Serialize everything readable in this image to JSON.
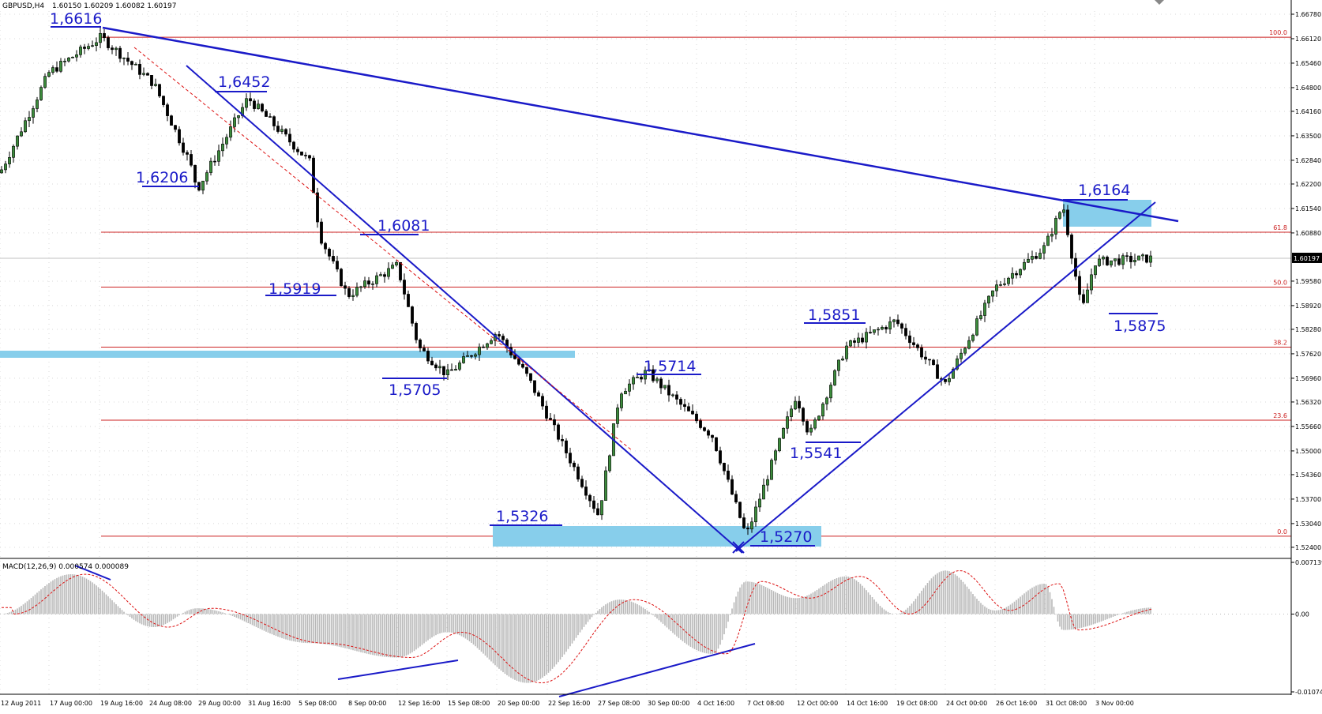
{
  "header": {
    "symbol": "GBPUSD,H4",
    "ohlc": "1.60150 1.60209 1.60082 1.60197"
  },
  "macd": {
    "label": "MACD(12,26,9) 0.000574 0.000089",
    "scale_labels": [
      "0.007139",
      "0.00",
      "-0.01074"
    ],
    "scale_values": [
      0.007139,
      0.0,
      -0.01074
    ]
  },
  "price_axis": {
    "min": 1.5242,
    "max": 1.6678,
    "labels": [
      "1.66780",
      "1.66120",
      "1.65460",
      "1.64800",
      "1.64160",
      "1.63500",
      "1.62840",
      "1.62200",
      "1.61540",
      "1.60880",
      "1.60197",
      "1.59580",
      "1.58920",
      "1.58280",
      "1.57620",
      "1.56960",
      "1.56320",
      "1.55660",
      "1.55000",
      "1.54360",
      "1.53700",
      "1.53040",
      "1.52400"
    ],
    "current_price": "1.60197"
  },
  "x_axis": {
    "labels": [
      "12 Aug 2011",
      "17 Aug 00:00",
      "19 Aug 16:00",
      "24 Aug 08:00",
      "29 Aug 00:00",
      "31 Aug 16:00",
      "5 Sep 08:00",
      "8 Sep 00:00",
      "12 Sep 16:00",
      "15 Sep 08:00",
      "20 Sep 00:00",
      "22 Sep 16:00",
      "27 Sep 08:00",
      "30 Sep 00:00",
      "4 Oct 16:00",
      "7 Oct 08:00",
      "12 Oct 00:00",
      "14 Oct 16:00",
      "19 Oct 08:00",
      "24 Oct 00:00",
      "26 Oct 16:00",
      "31 Oct 08:00",
      "3 Nov 00:00"
    ]
  },
  "fib_levels": [
    {
      "label": "100.0",
      "price": 1.6616
    },
    {
      "label": "61.8",
      "price": 1.609
    },
    {
      "label": "50.0",
      "price": 1.5942
    },
    {
      "label": "38.2",
      "price": 1.578
    },
    {
      "label": "23.6",
      "price": 1.5583
    },
    {
      "label": "0.0",
      "price": 1.527
    }
  ],
  "annotations": [
    {
      "text": "1,6616",
      "price": 1.6616
    },
    {
      "text": "1,6452",
      "price": 1.6452
    },
    {
      "text": "1,6206",
      "price": 1.6206
    },
    {
      "text": "1,6081",
      "price": 1.6081
    },
    {
      "text": "1,5919",
      "price": 1.5919
    },
    {
      "text": "1,5705",
      "price": 1.5705
    },
    {
      "text": "1,5714",
      "price": 1.5714
    },
    {
      "text": "1,5326",
      "price": 1.5326
    },
    {
      "text": "1,5270",
      "price": 1.527
    },
    {
      "text": "1,5851",
      "price": 1.5851
    },
    {
      "text": "1,5541",
      "price": 1.5541
    },
    {
      "text": "1,6164",
      "price": 1.6164
    },
    {
      "text": "1,5875",
      "price": 1.5875
    }
  ],
  "colors": {
    "annotation_blue": "#1a1ac8",
    "zone_blue": "#87ceeb",
    "fib_red": "#cc2222",
    "candle": "#000000",
    "signal_red": "#dd1111",
    "histogram_gray": "#b8b8b8"
  },
  "chart_data": [
    {
      "type": "candlestick",
      "title": "GBPUSD,H4",
      "ylim": [
        1.5242,
        1.6678
      ],
      "anchors": [
        {
          "date": "12 Aug 2011",
          "price": 1.625
        },
        {
          "date": "17 Aug 00:00",
          "price": 1.652
        },
        {
          "date": "17 Aug 08:00",
          "price": 1.6616
        },
        {
          "date": "19 Aug 16:00",
          "price": 1.649
        },
        {
          "date": "24 Aug 08:00",
          "price": 1.628
        },
        {
          "date": "24 Aug 16:00",
          "price": 1.6206
        },
        {
          "date": "29 Aug 00:00",
          "price": 1.6452
        },
        {
          "date": "31 Aug 16:00",
          "price": 1.628
        },
        {
          "date": "5 Sep 08:00",
          "price": 1.6081
        },
        {
          "date": "6 Sep 00:00",
          "price": 1.5919
        },
        {
          "date": "8 Sep 00:00",
          "price": 1.6
        },
        {
          "date": "12 Sep 16:00",
          "price": 1.578
        },
        {
          "date": "13 Sep 16:00",
          "price": 1.5705
        },
        {
          "date": "15 Sep 08:00",
          "price": 1.582
        },
        {
          "date": "20 Sep 00:00",
          "price": 1.57
        },
        {
          "date": "21 Sep 16:00",
          "price": 1.5326
        },
        {
          "date": "27 Sep 08:00",
          "price": 1.566
        },
        {
          "date": "28 Sep 08:00",
          "price": 1.5714
        },
        {
          "date": "30 Sep 00:00",
          "price": 1.554
        },
        {
          "date": "4 Oct 16:00",
          "price": 1.527
        },
        {
          "date": "7 Oct 08:00",
          "price": 1.565
        },
        {
          "date": "11 Oct 16:00",
          "price": 1.5541
        },
        {
          "date": "12 Oct 00:00",
          "price": 1.578
        },
        {
          "date": "14 Oct 16:00",
          "price": 1.5851
        },
        {
          "date": "19 Oct 08:00",
          "price": 1.568
        },
        {
          "date": "24 Oct 00:00",
          "price": 1.594
        },
        {
          "date": "26 Oct 16:00",
          "price": 1.605
        },
        {
          "date": "31 Oct 08:00",
          "price": 1.6164
        },
        {
          "date": "1 Nov 16:00",
          "price": 1.5875
        },
        {
          "date": "3 Nov 00:00",
          "price": 1.601
        },
        {
          "date": "4 Nov 16:00",
          "price": 1.60197
        }
      ]
    },
    {
      "type": "bar",
      "title": "MACD(12,26,9)",
      "ylim": [
        -0.01074,
        0.007139
      ],
      "histogram_anchors": [
        {
          "date": "12 Aug 2011",
          "value": 0.0
        },
        {
          "date": "17 Aug 08:00",
          "value": 0.0055
        },
        {
          "date": "24 Aug 08:00",
          "value": -0.0018
        },
        {
          "date": "29 Aug 00:00",
          "value": 0.0008
        },
        {
          "date": "5 Sep 08:00",
          "value": -0.004
        },
        {
          "date": "12 Sep 16:00",
          "value": -0.006
        },
        {
          "date": "15 Sep 08:00",
          "value": -0.0025
        },
        {
          "date": "21 Sep 16:00",
          "value": -0.0095
        },
        {
          "date": "28 Sep 08:00",
          "value": 0.002
        },
        {
          "date": "4 Oct 16:00",
          "value": -0.0055
        },
        {
          "date": "7 Oct 08:00",
          "value": 0.0045
        },
        {
          "date": "12 Oct 00:00",
          "value": 0.0022
        },
        {
          "date": "14 Oct 16:00",
          "value": 0.0052
        },
        {
          "date": "19 Oct 08:00",
          "value": 0.0
        },
        {
          "date": "24 Oct 00:00",
          "value": 0.006
        },
        {
          "date": "26 Oct 16:00",
          "value": 0.0005
        },
        {
          "date": "31 Oct 08:00",
          "value": 0.0042
        },
        {
          "date": "1 Nov 16:00",
          "value": -0.0022
        },
        {
          "date": "4 Nov 16:00",
          "value": 0.0009
        }
      ]
    }
  ]
}
